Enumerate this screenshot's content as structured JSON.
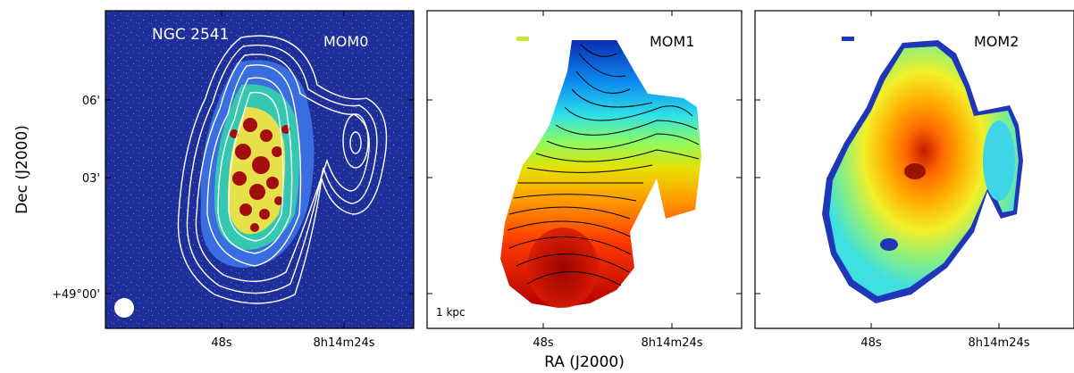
{
  "figure": {
    "object_label": "NGC 2541",
    "ylabel": "Dec (J2000)",
    "xlabel": "RA (J2000)",
    "scale_bar": "1 kpc",
    "panels": [
      {
        "id": "mom0",
        "label": "MOM0"
      },
      {
        "id": "mom1",
        "label": "MOM1"
      },
      {
        "id": "mom2",
        "label": "MOM2"
      }
    ],
    "yticks": [
      "06'",
      "03'",
      "+49°00'"
    ],
    "xticks": [
      "48s",
      "8h14m24s"
    ]
  },
  "colors": {
    "background": "#1e2f9a",
    "contour_white": "#ffffff",
    "red": "#a40d0d",
    "orange": "#ff8a10",
    "yellow": "#ffe53a",
    "cyan": "#27d6ef",
    "blue": "#1f36b8"
  }
}
